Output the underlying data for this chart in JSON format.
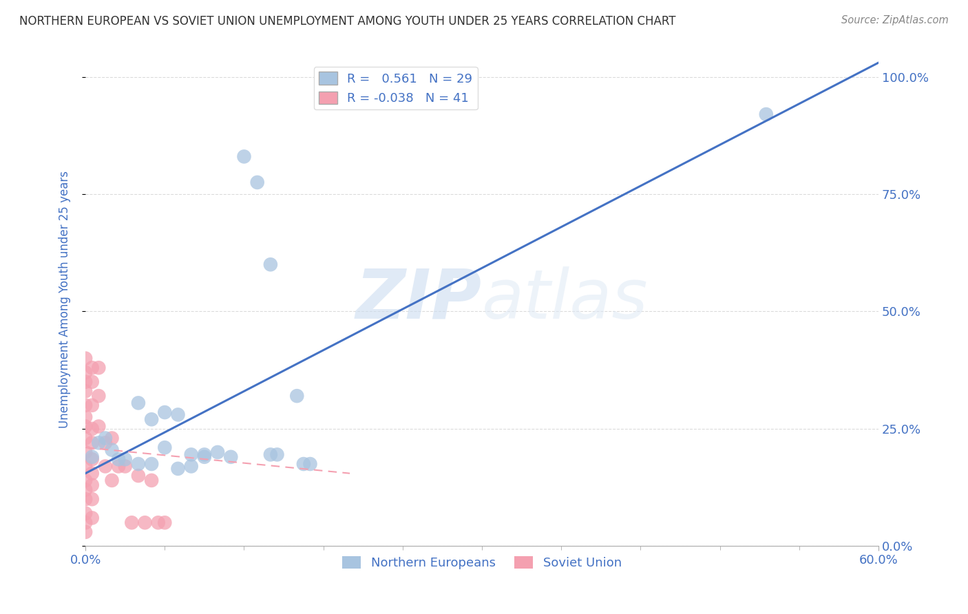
{
  "title": "NORTHERN EUROPEAN VS SOVIET UNION UNEMPLOYMENT AMONG YOUTH UNDER 25 YEARS CORRELATION CHART",
  "source": "Source: ZipAtlas.com",
  "ylabel": "Unemployment Among Youth under 25 years",
  "xlim": [
    0.0,
    0.6
  ],
  "ylim": [
    0.0,
    1.05
  ],
  "x_tick_positions": [
    0.0,
    0.6
  ],
  "x_tick_labels": [
    "0.0%",
    "60.0%"
  ],
  "x_minor_ticks": [
    0.06,
    0.12,
    0.18,
    0.24,
    0.3,
    0.36,
    0.42,
    0.48,
    0.54
  ],
  "y_ticks": [
    0.0,
    0.25,
    0.5,
    0.75,
    1.0
  ],
  "y_tick_labels": [
    "0.0%",
    "25.0%",
    "50.0%",
    "75.0%",
    "100.0%"
  ],
  "ne_color": "#a8c4e0",
  "su_color": "#f4a0b0",
  "ne_line_color": "#4472c4",
  "su_line_color": "#f4a0b0",
  "ne_scatter_x": [
    0.005,
    0.01,
    0.015,
    0.02,
    0.025,
    0.03,
    0.04,
    0.05,
    0.06,
    0.07,
    0.08,
    0.09,
    0.1,
    0.11,
    0.12,
    0.13,
    0.14,
    0.16,
    0.17,
    0.04,
    0.05,
    0.06,
    0.07,
    0.08,
    0.09,
    0.515,
    0.14,
    0.145,
    0.165
  ],
  "ne_scatter_y": [
    0.19,
    0.22,
    0.23,
    0.205,
    0.185,
    0.185,
    0.305,
    0.27,
    0.285,
    0.28,
    0.195,
    0.195,
    0.2,
    0.19,
    0.83,
    0.775,
    0.6,
    0.32,
    0.175,
    0.175,
    0.175,
    0.21,
    0.165,
    0.17,
    0.19,
    0.92,
    0.195,
    0.195,
    0.175
  ],
  "su_scatter_x": [
    0.0,
    0.0,
    0.0,
    0.0,
    0.0,
    0.0,
    0.0,
    0.0,
    0.0,
    0.0,
    0.0,
    0.0,
    0.0,
    0.0,
    0.0,
    0.0,
    0.005,
    0.005,
    0.005,
    0.005,
    0.005,
    0.005,
    0.005,
    0.005,
    0.005,
    0.005,
    0.01,
    0.01,
    0.01,
    0.015,
    0.015,
    0.02,
    0.02,
    0.025,
    0.03,
    0.035,
    0.04,
    0.045,
    0.05,
    0.055,
    0.06
  ],
  "su_scatter_y": [
    0.4,
    0.37,
    0.35,
    0.33,
    0.3,
    0.275,
    0.255,
    0.23,
    0.2,
    0.17,
    0.14,
    0.12,
    0.1,
    0.07,
    0.05,
    0.03,
    0.38,
    0.35,
    0.3,
    0.25,
    0.22,
    0.185,
    0.155,
    0.13,
    0.1,
    0.06,
    0.38,
    0.32,
    0.255,
    0.22,
    0.17,
    0.23,
    0.14,
    0.17,
    0.17,
    0.05,
    0.15,
    0.05,
    0.14,
    0.05,
    0.05
  ],
  "ne_trend_x": [
    0.0,
    0.6
  ],
  "ne_trend_y": [
    0.155,
    1.03
  ],
  "su_trend_x": [
    0.0,
    0.2
  ],
  "su_trend_y": [
    0.21,
    0.155
  ],
  "background_color": "#ffffff",
  "grid_color": "#cccccc",
  "title_color": "#333333",
  "axis_label_color": "#4472c4",
  "watermark_zip": "ZIP",
  "watermark_atlas": "atlas",
  "legend_ne_label": "R =   0.561   N = 29",
  "legend_su_label": "R = -0.038   N = 41"
}
